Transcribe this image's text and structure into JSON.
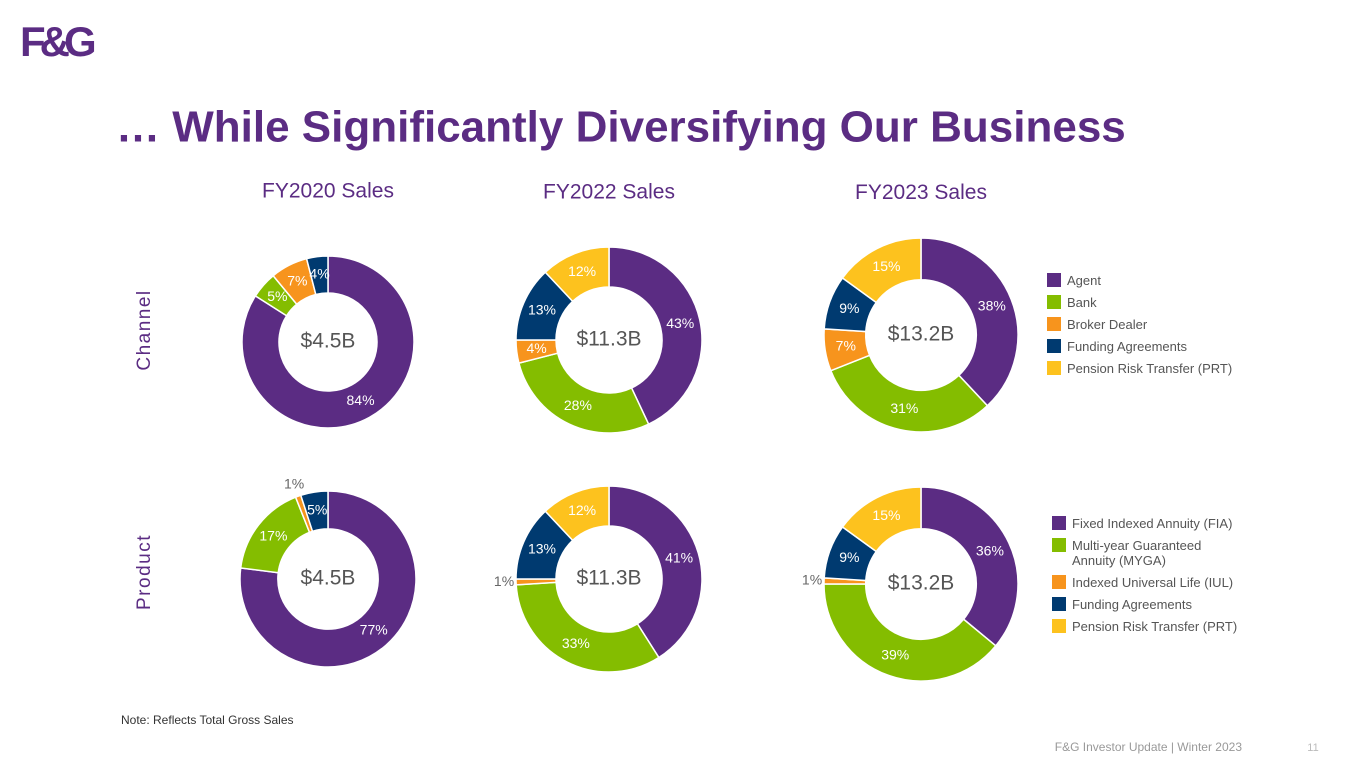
{
  "logo": "F&G",
  "title": "… While Significantly Diversifying Our Business",
  "note": "Note:  Reflects Total Gross Sales",
  "footer": "F&G Investor Update | Winter 2023",
  "page_number": "11",
  "chart_data": [
    {
      "type": "donut",
      "title": "Channel",
      "categories": [
        "Agent",
        "Bank",
        "Broker Dealer",
        "Funding Agreements",
        "Pension Risk Transfer (PRT)"
      ],
      "colors": [
        "#5b2c83",
        "#84bd00",
        "#f7941d",
        "#003a70",
        "#fdc21e"
      ],
      "series": [
        {
          "name": "FY2020 Sales",
          "center_label": "$4.5B",
          "values": [
            84,
            5,
            7,
            4,
            null
          ],
          "value_labels": [
            "84%",
            "5%",
            "7%",
            "4%",
            null
          ]
        },
        {
          "name": "FY2022 Sales",
          "center_label": "$11.3B",
          "values": [
            43,
            28,
            4,
            13,
            12
          ],
          "value_labels": [
            "43%",
            "28%",
            "4%",
            "13%",
            "12%"
          ]
        },
        {
          "name": "FY2023 Sales",
          "center_label": "$13.2B",
          "values": [
            38,
            31,
            7,
            9,
            15
          ],
          "value_labels": [
            "38%",
            "31%",
            "7%",
            "9%",
            "15%"
          ]
        }
      ]
    },
    {
      "type": "donut",
      "title": "Product",
      "categories": [
        "Fixed Indexed Annuity (FIA)",
        "Multi-year Guaranteed Annuity (MYGA)",
        "Indexed Universal Life (IUL)",
        "Funding Agreements",
        "Pension Risk Transfer (PRT)"
      ],
      "colors": [
        "#5b2c83",
        "#84bd00",
        "#f7941d",
        "#003a70",
        "#fdc21e"
      ],
      "series": [
        {
          "center_label": "$4.5B",
          "values": [
            77,
            17,
            1,
            5,
            null
          ],
          "value_labels": [
            "77%",
            "17%",
            "1%",
            "5%",
            null
          ]
        },
        {
          "center_label": "$11.3B",
          "values": [
            41,
            33,
            1,
            13,
            12
          ],
          "value_labels": [
            "41%",
            "33%",
            "1%",
            "13%",
            "12%"
          ]
        },
        {
          "center_label": "$13.2B",
          "values": [
            36,
            39,
            1,
            9,
            15
          ],
          "value_labels": [
            "36%",
            "39%",
            "1%",
            "9%",
            "15%"
          ]
        }
      ]
    }
  ]
}
